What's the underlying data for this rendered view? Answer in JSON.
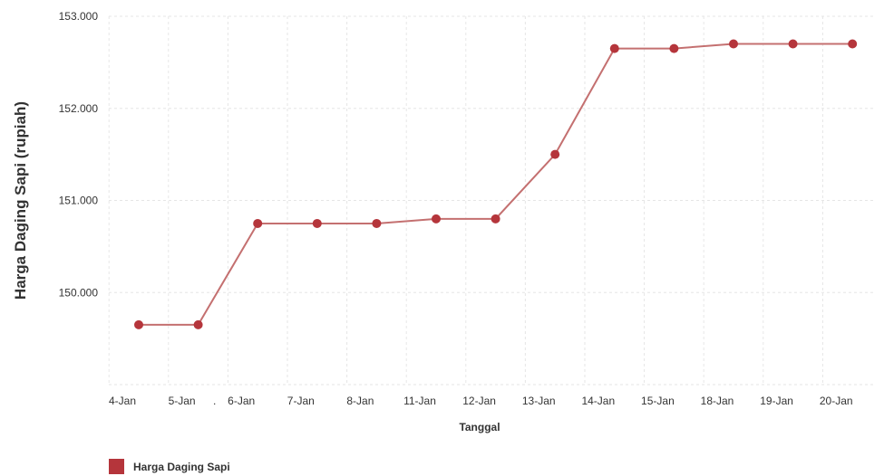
{
  "chart_data": {
    "type": "line",
    "categories": [
      "4-Jan",
      "5-Jan",
      "6-Jan",
      "7-Jan",
      "8-Jan",
      "11-Jan",
      "12-Jan",
      "13-Jan",
      "14-Jan",
      "15-Jan",
      "18-Jan",
      "19-Jan",
      "20-Jan"
    ],
    "series": [
      {
        "name": "Harga Daging Sapi",
        "values": [
          149650,
          149650,
          150750,
          150750,
          150750,
          150800,
          150800,
          151500,
          152650,
          152650,
          152700,
          152700,
          152700
        ],
        "color": "#b5353b"
      }
    ],
    "xlabel": "Tanggal",
    "ylabel": "Harga Daging Sapi (rupiah)",
    "ylim": [
      149000,
      153000
    ],
    "yticks": [
      {
        "value": 150000,
        "label": "150.000"
      },
      {
        "value": 151000,
        "label": "151.000"
      },
      {
        "value": 152000,
        "label": "152.000"
      },
      {
        "value": 153000,
        "label": "153.000"
      }
    ],
    "stray_tick_text": ".",
    "grid": true,
    "legend_position": "bottom-left",
    "colors": {
      "line": "#c47070",
      "marker": "#b5353b",
      "grid": "#e6e6e6",
      "text": "#333333"
    }
  }
}
